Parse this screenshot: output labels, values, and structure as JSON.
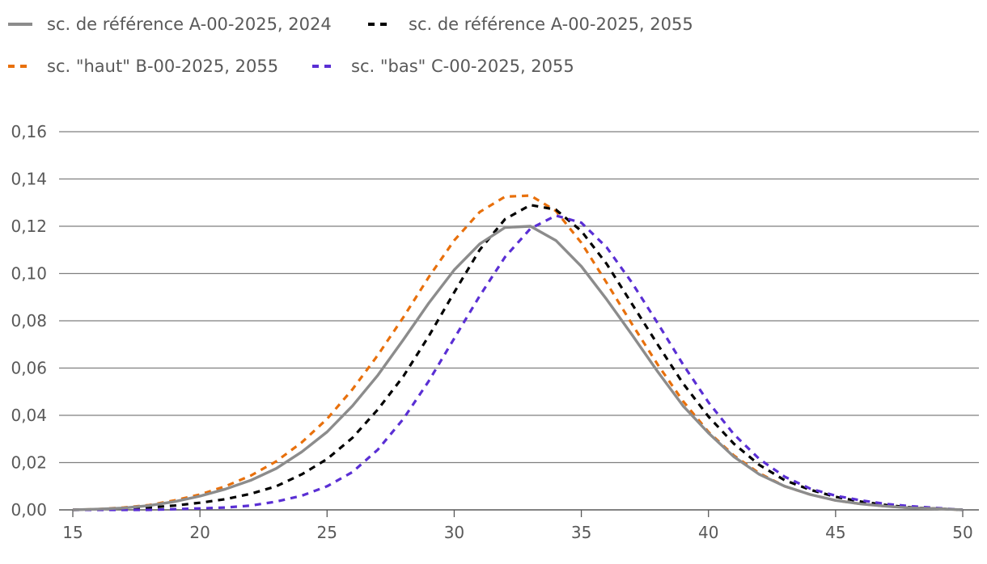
{
  "chart_data": {
    "type": "line",
    "title": "",
    "xlabel": "",
    "ylabel": "",
    "xlim": [
      15,
      50
    ],
    "ylim": [
      0,
      0.16
    ],
    "x_ticks": [
      15,
      20,
      25,
      30,
      35,
      40,
      45,
      50
    ],
    "y_ticks": [
      0,
      0.02,
      0.04,
      0.06,
      0.08,
      0.1,
      0.12,
      0.14,
      0.16
    ],
    "x_tick_labels": [
      "15",
      "20",
      "25",
      "30",
      "35",
      "40",
      "45",
      "50"
    ],
    "y_tick_labels": [
      "0,00",
      "0,02",
      "0,04",
      "0,06",
      "0,08",
      "0,10",
      "0,12",
      "0,14",
      "0,16"
    ],
    "grid": "horizontal",
    "legend_position": "top",
    "x": [
      15,
      16,
      17,
      18,
      19,
      20,
      21,
      22,
      23,
      24,
      25,
      26,
      27,
      28,
      29,
      30,
      31,
      32,
      33,
      34,
      35,
      36,
      37,
      38,
      39,
      40,
      41,
      42,
      43,
      44,
      45,
      46,
      47,
      48,
      49,
      50
    ],
    "series": [
      {
        "name": "sc. de référence A-00-2025, 2024",
        "color": "#8c8c8c",
        "style": "solid",
        "values": [
          0.0,
          0.0003,
          0.0008,
          0.0018,
          0.0035,
          0.0058,
          0.0088,
          0.0125,
          0.0175,
          0.0245,
          0.033,
          0.044,
          0.057,
          0.072,
          0.0875,
          0.1015,
          0.1125,
          0.1195,
          0.12,
          0.114,
          0.103,
          0.089,
          0.074,
          0.0585,
          0.044,
          0.0325,
          0.0225,
          0.015,
          0.01,
          0.0065,
          0.004,
          0.0025,
          0.0015,
          0.0008,
          0.0005,
          0.0
        ]
      },
      {
        "name": "sc. de référence A-00-2025, 2055",
        "color": "#000000",
        "style": "dashed",
        "values": [
          0.0,
          0.0002,
          0.0005,
          0.001,
          0.0018,
          0.003,
          0.0045,
          0.0068,
          0.01,
          0.015,
          0.0215,
          0.0305,
          0.0425,
          0.0565,
          0.0735,
          0.092,
          0.11,
          0.123,
          0.129,
          0.127,
          0.118,
          0.104,
          0.087,
          0.07,
          0.0535,
          0.0395,
          0.028,
          0.019,
          0.0125,
          0.0085,
          0.0055,
          0.0035,
          0.002,
          0.001,
          0.0005,
          0.0
        ]
      },
      {
        "name": "sc. \"haut\" B-00-2025, 2055",
        "color": "#e8700c",
        "style": "dashed",
        "values": [
          0.0,
          0.0003,
          0.001,
          0.002,
          0.004,
          0.0065,
          0.01,
          0.0145,
          0.0205,
          0.0285,
          0.0385,
          0.051,
          0.0655,
          0.0815,
          0.0985,
          0.114,
          0.126,
          0.1325,
          0.133,
          0.1265,
          0.113,
          0.096,
          0.0785,
          0.0615,
          0.046,
          0.033,
          0.023,
          0.0155,
          0.01,
          0.0065,
          0.004,
          0.0025,
          0.0015,
          0.0008,
          0.0005,
          0.0
        ]
      },
      {
        "name": "sc. \"bas\" C-00-2025, 2055",
        "color": "#5a2fd4",
        "style": "dashed",
        "values": [
          0.0,
          0.0,
          0.0,
          0.0,
          0.0003,
          0.0006,
          0.001,
          0.0018,
          0.0035,
          0.006,
          0.01,
          0.016,
          0.0255,
          0.0385,
          0.0545,
          0.0725,
          0.0905,
          0.107,
          0.119,
          0.1245,
          0.1215,
          0.111,
          0.096,
          0.079,
          0.0615,
          0.0455,
          0.032,
          0.0215,
          0.014,
          0.009,
          0.006,
          0.004,
          0.0025,
          0.0015,
          0.0008,
          0.0
        ]
      }
    ]
  }
}
